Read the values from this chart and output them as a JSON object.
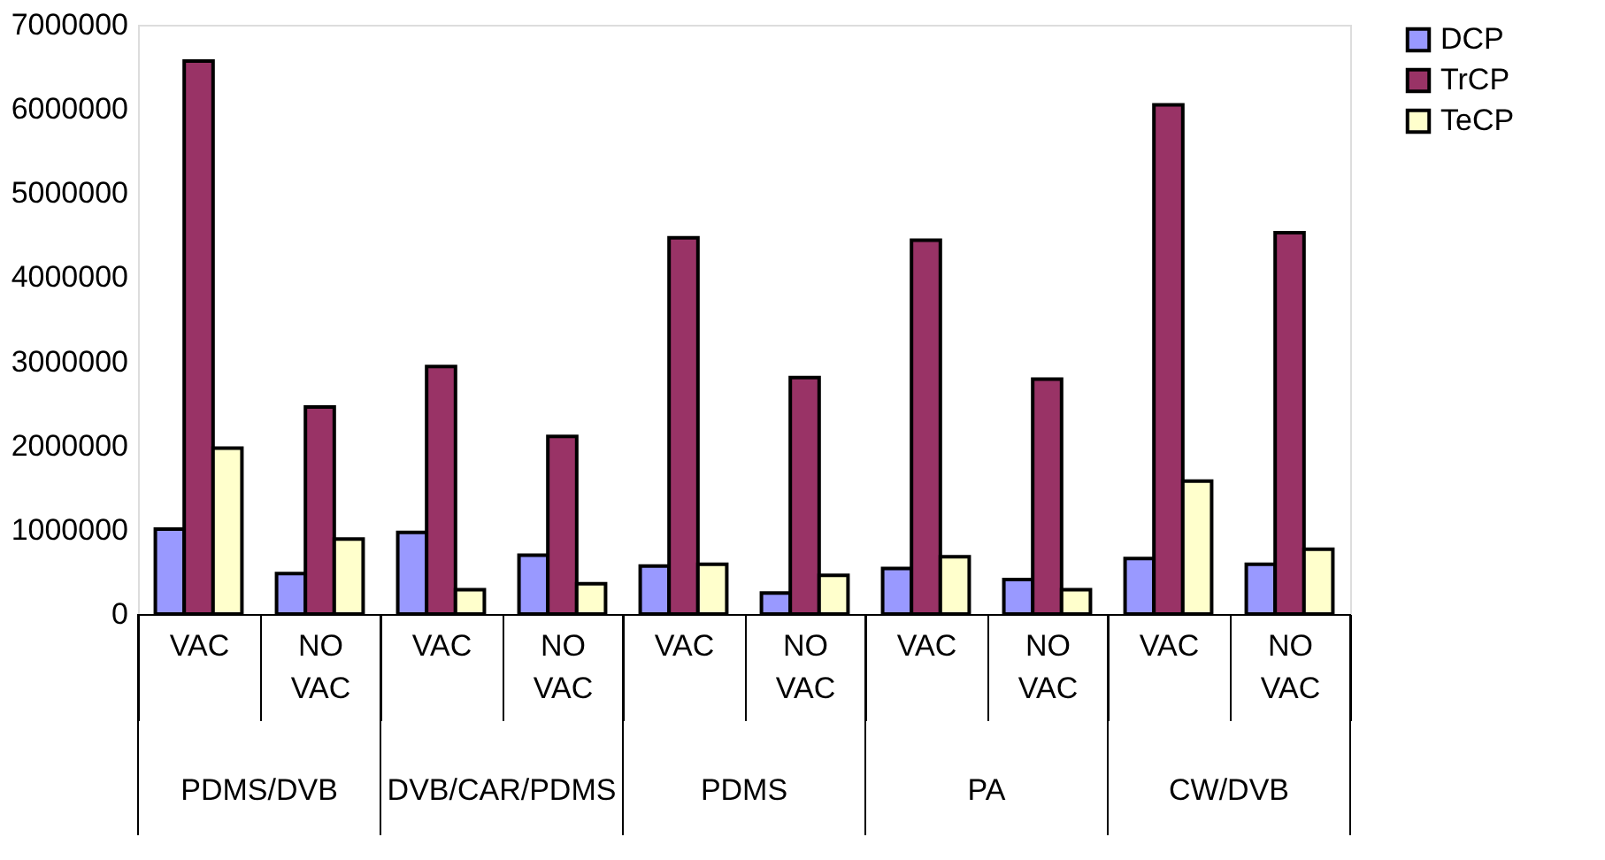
{
  "chart_data": {
    "type": "bar",
    "categories": [
      "VAC",
      "NO VAC",
      "VAC",
      "NO VAC",
      "VAC",
      "NO VAC",
      "VAC",
      "NO VAC",
      "VAC",
      "NO VAC"
    ],
    "annotations": [
      "PDMS/DVB",
      "DVB/CAR/PDMS",
      "PDMS",
      "PA",
      "CW/DVB"
    ],
    "series": [
      {
        "name": "DCP",
        "color": "#9999ff",
        "values": [
          1010000,
          480000,
          970000,
          700000,
          570000,
          250000,
          540000,
          410000,
          660000,
          590000
        ]
      },
      {
        "name": "TrCP",
        "color": "#993366",
        "values": [
          6570000,
          2460000,
          2940000,
          2110000,
          4470000,
          2810000,
          4440000,
          2790000,
          6050000,
          4530000
        ]
      },
      {
        "name": "TeCP",
        "color": "#ffffcc",
        "values": [
          1970000,
          890000,
          290000,
          360000,
          590000,
          460000,
          680000,
          290000,
          1580000,
          770000
        ]
      }
    ],
    "ylim": [
      0,
      7000000
    ],
    "yticks": [
      0,
      1000000,
      2000000,
      3000000,
      4000000,
      5000000,
      6000000,
      7000000
    ],
    "grid": false,
    "legend": "right"
  }
}
